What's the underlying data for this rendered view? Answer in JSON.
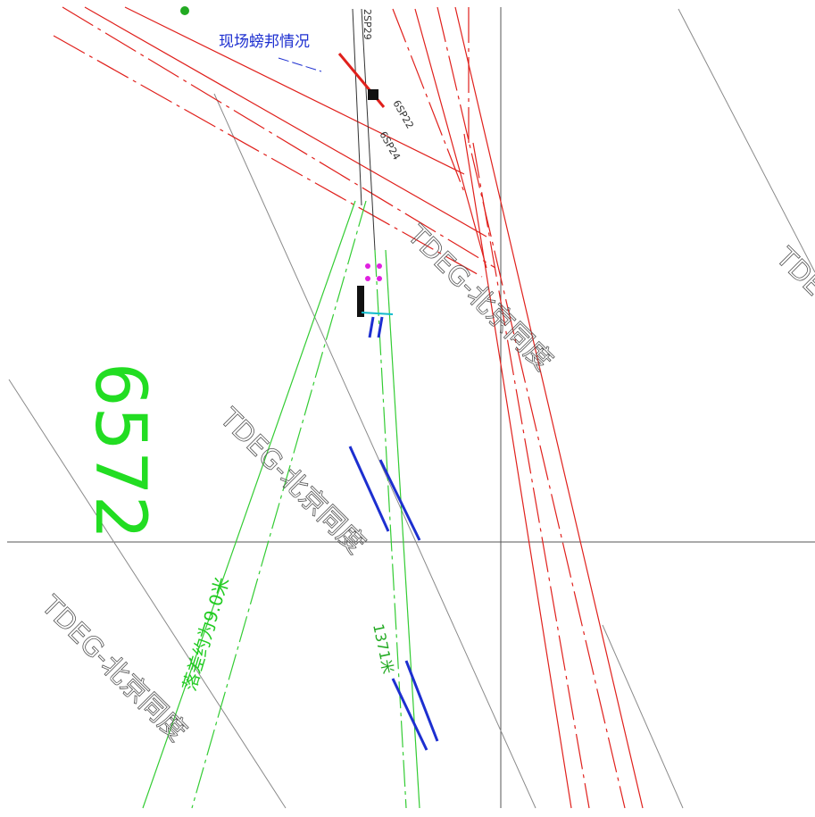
{
  "drawing": {
    "site_note": "现场螃邦情况",
    "section_number": "6572",
    "drop_note": "落差约为9.0米",
    "distance_note": "1371米",
    "small_labels": [
      "6SP22",
      "6SP24",
      "2SP29"
    ],
    "watermarks": [
      "TDEG-北京同度",
      "TDEG-北京同度",
      "TDEG-北京同度",
      "TDEG-北京同度"
    ]
  }
}
